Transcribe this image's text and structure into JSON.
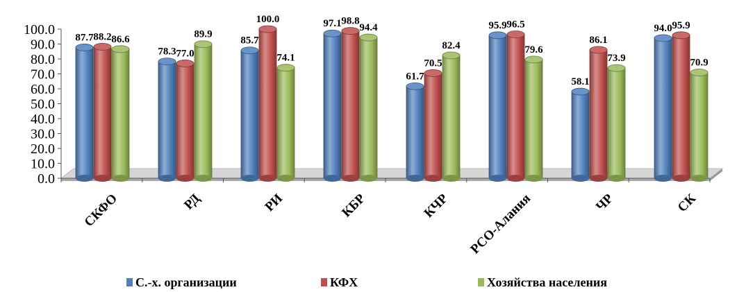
{
  "chart_data": {
    "type": "bar",
    "categories": [
      "СКФО",
      "РД",
      "РИ",
      "КБР",
      "КЧР",
      "РСО-Алания",
      "ЧР",
      "СК"
    ],
    "series": [
      {
        "name": "С.-х. организации",
        "color": "#4f81bd",
        "values": [
          87.7,
          78.3,
          85.7,
          97.1,
          61.7,
          95.9,
          58.1,
          94.0
        ]
      },
      {
        "name": "КФХ",
        "color": "#c0504d",
        "values": [
          88.2,
          77.0,
          100.0,
          98.8,
          70.5,
          96.5,
          86.1,
          95.9
        ]
      },
      {
        "name": "Хозяйства населения",
        "color": "#9bbb59",
        "values": [
          86.6,
          89.9,
          74.1,
          94.4,
          82.4,
          79.6,
          73.9,
          70.9
        ]
      }
    ],
    "ylim": [
      0,
      100
    ],
    "yticks": [
      "0.0",
      "10.0",
      "20.0",
      "30.0",
      "40.0",
      "50.0",
      "60.0",
      "70.0",
      "80.0",
      "90.0",
      "100.0"
    ],
    "value_format_decimals": 1,
    "legend_position": "bottom",
    "grid": false,
    "style": "3d-cylinder"
  }
}
